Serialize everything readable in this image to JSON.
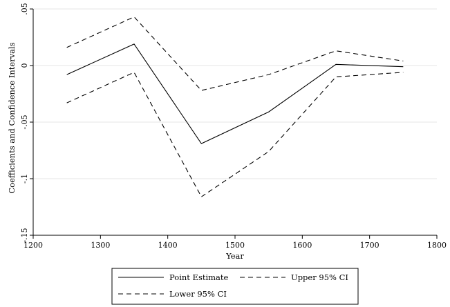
{
  "chart_data": {
    "type": "line",
    "title": "",
    "xlabel": "Year",
    "ylabel": "Coefficients and Confidence Intervals",
    "xlim": [
      1200,
      1800
    ],
    "ylim": [
      -0.15,
      0.05
    ],
    "xticks": [
      1200,
      1300,
      1400,
      1500,
      1600,
      1700,
      1800
    ],
    "xtick_labels": [
      "1200",
      "1300",
      "1400",
      "1500",
      "1600",
      "1700",
      "1800"
    ],
    "yticks": [
      0.05,
      0,
      -0.05,
      -0.1,
      -0.15
    ],
    "ytick_labels": [
      ".05",
      "0",
      "-.05",
      "-.1",
      "-.15"
    ],
    "grid": true,
    "legend_position": "bottom",
    "x": [
      1250,
      1350,
      1450,
      1550,
      1650,
      1750
    ],
    "series": [
      {
        "name": "Point Estimate",
        "style": "solid",
        "values": [
          -0.008,
          0.019,
          -0.069,
          -0.041,
          0.001,
          -0.001
        ]
      },
      {
        "name": "Upper 95% CI",
        "style": "dashed",
        "values": [
          0.016,
          0.043,
          -0.022,
          -0.008,
          0.013,
          0.004
        ]
      },
      {
        "name": "Lower 95% CI",
        "style": "dashed",
        "values": [
          -0.033,
          -0.006,
          -0.116,
          -0.076,
          -0.01,
          -0.006
        ]
      }
    ],
    "legend": [
      {
        "label": "Point Estimate",
        "style": "solid"
      },
      {
        "label": "Upper 95% CI",
        "style": "dashed"
      },
      {
        "label": "Lower 95% CI",
        "style": "dashed"
      }
    ],
    "colors": {
      "line": "#000000",
      "grid": "#e6e6e6",
      "axis": "#000000"
    }
  }
}
